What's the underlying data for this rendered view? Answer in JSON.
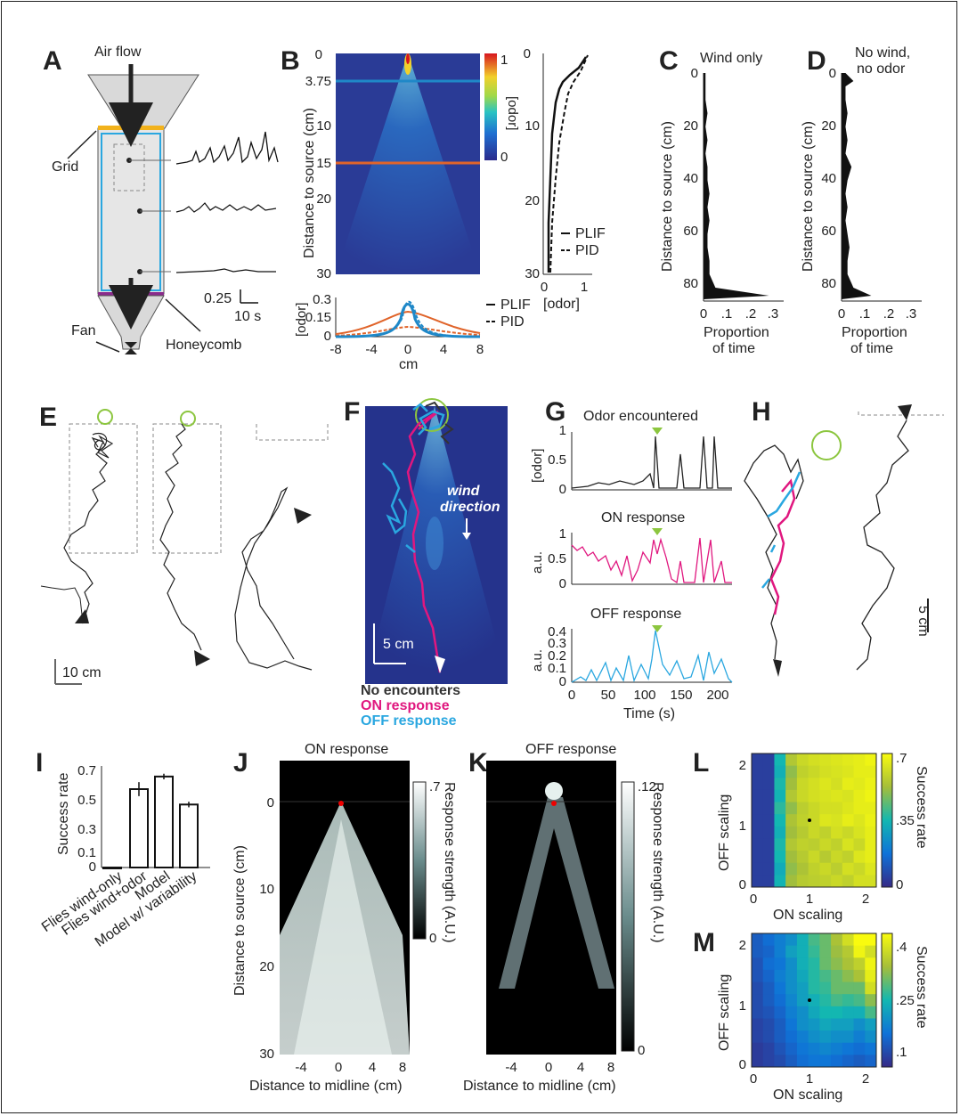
{
  "panel_letters": [
    "A",
    "B",
    "C",
    "D",
    "E",
    "F",
    "G",
    "H",
    "I",
    "J",
    "K",
    "L",
    "M"
  ],
  "panel_a": {
    "air_flow": "Air flow",
    "grid": "Grid",
    "fan": "Fan",
    "honeycomb": "Honeycomb",
    "scalebar_y": "0.25",
    "scalebar_x": "10 s"
  },
  "panel_b": {
    "ylabel": "Distance to source (cm)",
    "ytick_labels": [
      "0",
      "3.75",
      "10",
      "15",
      "20",
      "30"
    ],
    "xtick_labels": [
      "-8",
      "-4",
      "0",
      "4",
      "8"
    ],
    "colorbar_label": "[odor]",
    "colorbar_ticks": [
      "1",
      "0"
    ],
    "profile_yticks": [
      "0",
      "10",
      "20",
      "30"
    ],
    "profile_xticks": [
      "0",
      "1"
    ],
    "profile_xlabel": "[odor]",
    "legend": [
      "PLIF",
      "PID"
    ],
    "cross_ylabel": "[odor]",
    "cross_yticks": [
      "0.3",
      "0.15",
      "0"
    ],
    "cross_xlabel": "cm",
    "cross_legend": [
      "PLIF",
      "PID"
    ],
    "line_colors": {
      "near": "#1f88c8",
      "far": "#e0642a"
    }
  },
  "panel_c": {
    "title": "Wind only",
    "ylabel": "Distance to source (cm)",
    "xlabel_1": "Proportion",
    "xlabel_2": "of  time",
    "yticks": [
      "0",
      "20",
      "40",
      "60",
      "80"
    ],
    "xticks": [
      "0",
      ".1",
      ".2",
      ".3"
    ]
  },
  "panel_d": {
    "title_1": "No wind,",
    "title_2": "no odor",
    "ylabel": "Distance to source (cm)",
    "xlabel_1": "Proportion",
    "xlabel_2": "of  time",
    "yticks": [
      "0",
      "20",
      "40",
      "60",
      "80"
    ],
    "xticks": [
      "0",
      ".1",
      ".2",
      ".3"
    ]
  },
  "panel_e": {
    "scalebar": "10 cm"
  },
  "panel_f": {
    "wind_1": "wind",
    "wind_2": "direction",
    "scalebar": "5 cm",
    "legend": [
      {
        "label": "No encounters",
        "color": "#333333"
      },
      {
        "label": "ON response",
        "color": "#e0177f"
      },
      {
        "label": "OFF response",
        "color": "#2aa7e0"
      }
    ]
  },
  "panel_g": {
    "titles": [
      "Odor encountered",
      "ON response",
      "OFF response"
    ],
    "ylabels": [
      "[odor]",
      "a.u.",
      "a.u."
    ],
    "yticks_1": [
      "1",
      "0.5",
      "0"
    ],
    "yticks_2": [
      "1",
      "0.5",
      "0"
    ],
    "yticks_3": [
      "0.4",
      "0.3",
      "0.2",
      "0.1",
      "0"
    ],
    "xticks": [
      "0",
      "50",
      "100",
      "150",
      "200"
    ],
    "xlabel": "Time (s)",
    "colors": [
      "#222222",
      "#e0177f",
      "#2aa7e0"
    ]
  },
  "panel_h": {
    "scalebar": "5 cm"
  },
  "panel_i": {
    "ylabel": "Success rate",
    "yticks": [
      "0.7",
      "0.5",
      "0.3",
      "0.1",
      "0"
    ],
    "categories": [
      "Flies wind-only",
      "Flies wind+odor",
      "Model",
      "Model w/ variability"
    ]
  },
  "panel_j": {
    "title": "ON response",
    "ylabel": "Distance to source (cm)",
    "xlabel": "Distance to midline (cm)",
    "yticks": [
      "0",
      "10",
      "20",
      "30"
    ],
    "xticks": [
      "-4",
      "0",
      "4",
      "8"
    ],
    "colorbar_label": "Response strength (A.U.)",
    "colorbar_ticks": [
      ".7",
      "0"
    ]
  },
  "panel_k": {
    "title": "OFF response",
    "xlabel": "Distance to midline (cm)",
    "xticks": [
      "-4",
      "0",
      "4",
      "8"
    ],
    "colorbar_label": "Response strength (A.U.)",
    "colorbar_ticks": [
      ".12",
      "0"
    ]
  },
  "panel_l": {
    "ylabel": "OFF scaling",
    "xlabel": "ON scaling",
    "yticks": [
      "2",
      "1",
      "0"
    ],
    "xticks": [
      "0",
      "1",
      "2"
    ],
    "colorbar_label": "Success rate",
    "colorbar_ticks": [
      ".7",
      ".35",
      "0"
    ]
  },
  "panel_m": {
    "ylabel": "OFF scaling",
    "xlabel": "ON scaling",
    "yticks": [
      "2",
      "1",
      "0"
    ],
    "xticks": [
      "0",
      "1",
      "2"
    ],
    "colorbar_label": "Success rate",
    "colorbar_ticks": [
      ".4",
      ".25",
      ".1"
    ]
  },
  "chart_data": [
    {
      "type": "bar",
      "panel": "I",
      "ylabel": "Success rate",
      "ylim": [
        0,
        0.7
      ],
      "categories": [
        "Flies wind-only",
        "Flies wind+odor",
        "Model",
        "Model w/ variability"
      ],
      "values": [
        0.0,
        0.56,
        0.65,
        0.45
      ],
      "errors": [
        0.0,
        0.05,
        0.02,
        0.02
      ]
    },
    {
      "type": "heatmap",
      "panel": "L",
      "xlabel": "ON scaling",
      "ylabel": "OFF scaling",
      "xlim": [
        0,
        2.2
      ],
      "ylim": [
        0,
        2.2
      ],
      "note": "rows from OFF scaling 2 (top) to 0 (bottom); 11 columns of ON scaling from 0 to 2",
      "values": [
        [
          0.05,
          0.05,
          0.35,
          0.55,
          0.6,
          0.62,
          0.63,
          0.64,
          0.65,
          0.66,
          0.68
        ],
        [
          0.05,
          0.05,
          0.33,
          0.5,
          0.58,
          0.6,
          0.62,
          0.63,
          0.64,
          0.66,
          0.66
        ],
        [
          0.05,
          0.05,
          0.36,
          0.52,
          0.6,
          0.62,
          0.64,
          0.62,
          0.66,
          0.65,
          0.67
        ],
        [
          0.05,
          0.05,
          0.34,
          0.55,
          0.6,
          0.62,
          0.63,
          0.64,
          0.63,
          0.66,
          0.68
        ],
        [
          0.05,
          0.05,
          0.38,
          0.5,
          0.57,
          0.6,
          0.62,
          0.62,
          0.64,
          0.66,
          0.66
        ],
        [
          0.05,
          0.05,
          0.35,
          0.54,
          0.58,
          0.6,
          0.64,
          0.63,
          0.66,
          0.64,
          0.67
        ],
        [
          0.05,
          0.05,
          0.33,
          0.52,
          0.56,
          0.6,
          0.58,
          0.62,
          0.6,
          0.63,
          0.66
        ],
        [
          0.05,
          0.05,
          0.36,
          0.55,
          0.58,
          0.57,
          0.6,
          0.58,
          0.63,
          0.6,
          0.66
        ],
        [
          0.05,
          0.05,
          0.35,
          0.52,
          0.56,
          0.6,
          0.56,
          0.6,
          0.58,
          0.64,
          0.66
        ],
        [
          0.05,
          0.05,
          0.32,
          0.5,
          0.54,
          0.58,
          0.6,
          0.57,
          0.62,
          0.6,
          0.64
        ],
        [
          0.05,
          0.05,
          0.34,
          0.52,
          0.56,
          0.57,
          0.58,
          0.6,
          0.58,
          0.62,
          0.62
        ]
      ]
    },
    {
      "type": "heatmap",
      "panel": "M",
      "xlabel": "ON scaling",
      "ylabel": "OFF scaling",
      "xlim": [
        0,
        2.2
      ],
      "ylim": [
        0,
        2.2
      ],
      "note": "rows from OFF scaling 2 (top) to 0 (bottom); 11 columns of ON scaling from 0 to 2",
      "values": [
        [
          0.14,
          0.16,
          0.18,
          0.2,
          0.24,
          0.28,
          0.3,
          0.34,
          0.38,
          0.42,
          0.42
        ],
        [
          0.14,
          0.15,
          0.18,
          0.22,
          0.24,
          0.27,
          0.3,
          0.33,
          0.35,
          0.41,
          0.38
        ],
        [
          0.13,
          0.16,
          0.17,
          0.2,
          0.24,
          0.26,
          0.3,
          0.32,
          0.34,
          0.36,
          0.41
        ],
        [
          0.13,
          0.15,
          0.18,
          0.2,
          0.23,
          0.26,
          0.28,
          0.3,
          0.32,
          0.34,
          0.4
        ],
        [
          0.12,
          0.14,
          0.17,
          0.2,
          0.22,
          0.26,
          0.27,
          0.3,
          0.3,
          0.3,
          0.38
        ],
        [
          0.12,
          0.14,
          0.16,
          0.19,
          0.22,
          0.24,
          0.26,
          0.28,
          0.27,
          0.28,
          0.32
        ],
        [
          0.12,
          0.13,
          0.15,
          0.18,
          0.2,
          0.23,
          0.25,
          0.25,
          0.24,
          0.24,
          0.28
        ],
        [
          0.11,
          0.12,
          0.14,
          0.17,
          0.2,
          0.21,
          0.23,
          0.22,
          0.22,
          0.2,
          0.22
        ],
        [
          0.11,
          0.12,
          0.14,
          0.16,
          0.18,
          0.2,
          0.21,
          0.2,
          0.2,
          0.18,
          0.2
        ],
        [
          0.1,
          0.11,
          0.13,
          0.15,
          0.17,
          0.18,
          0.19,
          0.18,
          0.17,
          0.16,
          0.17
        ],
        [
          0.1,
          0.11,
          0.12,
          0.14,
          0.16,
          0.17,
          0.17,
          0.16,
          0.15,
          0.14,
          0.15
        ]
      ]
    },
    {
      "type": "area",
      "panel": "C",
      "xlabel": "Proportion of time",
      "ylabel": "Distance to source (cm)",
      "xlim": [
        0,
        0.35
      ],
      "ylim": [
        0,
        85
      ],
      "y": [
        0,
        5,
        10,
        15,
        20,
        25,
        30,
        35,
        40,
        45,
        50,
        55,
        60,
        65,
        70,
        75,
        80,
        83
      ],
      "x": [
        0.01,
        0.01,
        0.01,
        0.02,
        0.01,
        0.02,
        0.01,
        0.02,
        0.02,
        0.03,
        0.02,
        0.03,
        0.02,
        0.02,
        0.03,
        0.03,
        0.06,
        0.33
      ]
    },
    {
      "type": "area",
      "panel": "D",
      "xlabel": "Proportion of time",
      "ylabel": "Distance to source (cm)",
      "xlim": [
        0,
        0.35
      ],
      "ylim": [
        0,
        85
      ],
      "y": [
        0,
        3,
        5,
        10,
        15,
        20,
        25,
        30,
        35,
        40,
        45,
        50,
        55,
        60,
        65,
        70,
        75,
        80,
        83
      ],
      "x": [
        0.02,
        0.06,
        0.02,
        0.02,
        0.03,
        0.02,
        0.03,
        0.02,
        0.05,
        0.03,
        0.02,
        0.03,
        0.02,
        0.03,
        0.04,
        0.03,
        0.03,
        0.06,
        0.15
      ]
    }
  ]
}
